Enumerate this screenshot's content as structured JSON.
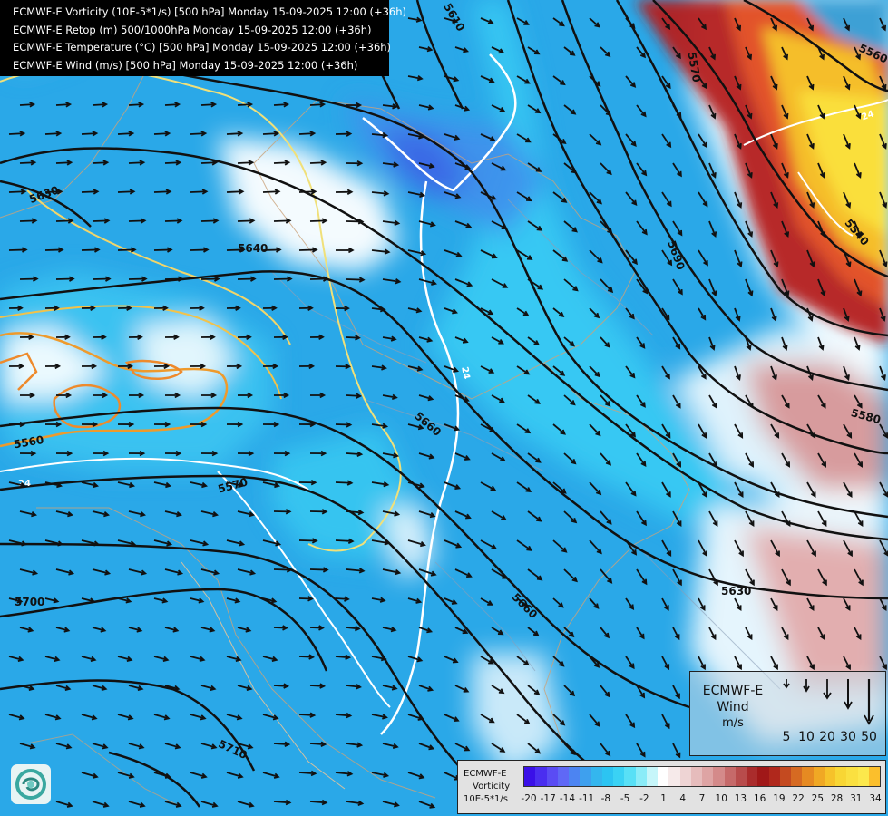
{
  "header": {
    "lines": [
      "ECMWF-E Vorticity (10E-5*1/s) [500 hPa] Monday 15-09-2025 12:00 (+36h)",
      "ECMWF-E Retop (m) 500/1000hPa Monday 15-09-2025 12:00 (+36h)",
      "ECMWF-E Temperature (°C) [500 hPa] Monday 15-09-2025 12:00 (+36h)",
      "ECMWF-E Wind (m/s) [500 hPa] Monday 15-09-2025 12:00 (+36h)"
    ]
  },
  "contour_labels": [
    "5610",
    "5630",
    "5640",
    "5560",
    "5570",
    "5700",
    "5710",
    "5660",
    "5690",
    "5580",
    "5540",
    "5560",
    "5570",
    "5660",
    "5630",
    "24",
    "24",
    "24"
  ],
  "wind_legend": {
    "title_lines": [
      "ECMWF-E",
      "Wind",
      "m/s"
    ],
    "speeds": [
      "5",
      "10",
      "20",
      "30",
      "50"
    ]
  },
  "vorticity_legend": {
    "title_lines": [
      "ECMWF-E",
      "Vorticity",
      "10E-5*1/s"
    ],
    "ticks": [
      "-20",
      "-17",
      "-14",
      "-11",
      "-8",
      "-5",
      "-2",
      "1",
      "4",
      "7",
      "10",
      "13",
      "16",
      "19",
      "22",
      "25",
      "28",
      "31",
      "34"
    ],
    "colors": [
      "#3a10e8",
      "#4a2ef0",
      "#5a4cf4",
      "#5f68f6",
      "#4c84f2",
      "#3ea0ee",
      "#34b6ee",
      "#2cc4f2",
      "#3ad2f4",
      "#58e0f6",
      "#8aecf8",
      "#c6f6fa",
      "#ffffff",
      "#f6eaea",
      "#eed4d4",
      "#e6bcbc",
      "#dea4a4",
      "#d48a8a",
      "#c66a6a",
      "#b84c4c",
      "#aa2c2c",
      "#a01818",
      "#b0281c",
      "#c44a20",
      "#d66a22",
      "#e68a22",
      "#f0a824",
      "#f6c22a",
      "#f8d634",
      "#fae040",
      "#fce84c",
      "#fbbf2c"
    ]
  },
  "colors": {
    "base_blue": "#2aa8e8",
    "light_cyan": "#36d4f6",
    "deep_blue": "#3e6ee8",
    "red_core": "#b01818",
    "yellow_core": "#f8cf2c"
  }
}
